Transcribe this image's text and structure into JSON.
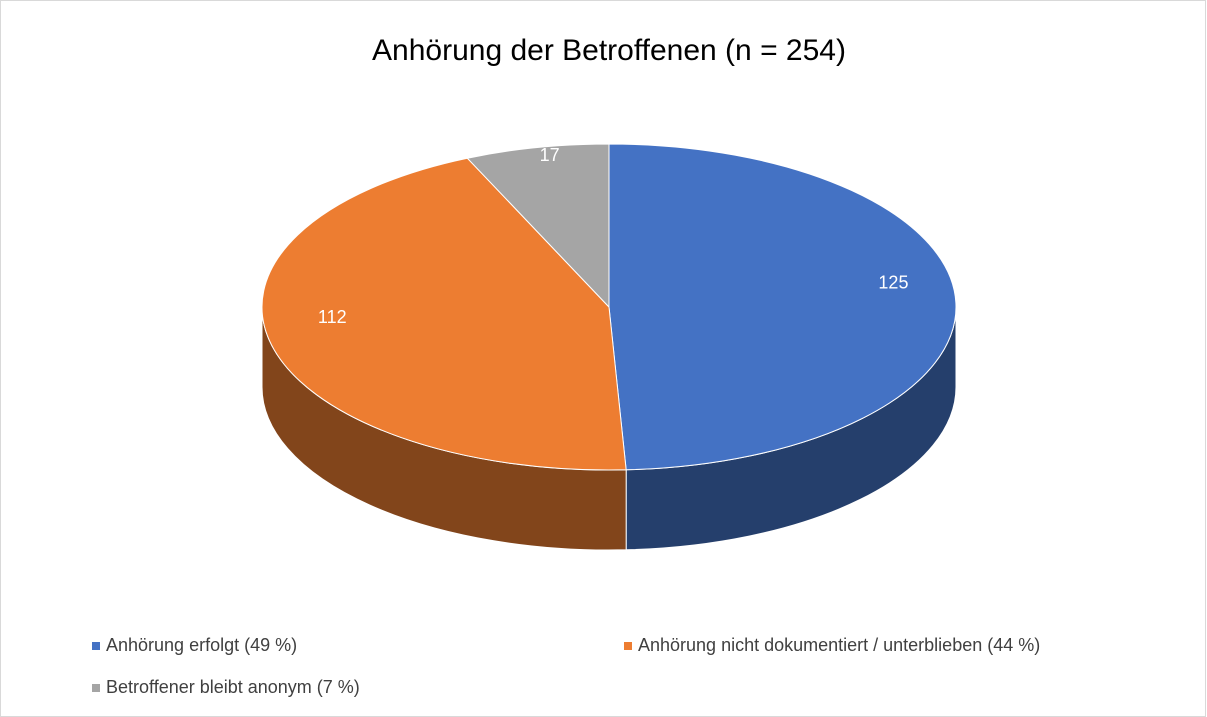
{
  "chart_data": {
    "type": "pie3d",
    "title": "Anhörung der Betroffenen (n = 254)",
    "categories": [
      "Anhörung erfolgt (49 %)",
      "Anhörung nicht dokumentiert / unterblieben (44 %)",
      "Betroffener bleibt anonym (7 %)"
    ],
    "values": [
      125,
      112,
      17
    ],
    "colors": [
      "#4472c4",
      "#ed7d31",
      "#a5a5a5"
    ],
    "legend": "bottom"
  }
}
